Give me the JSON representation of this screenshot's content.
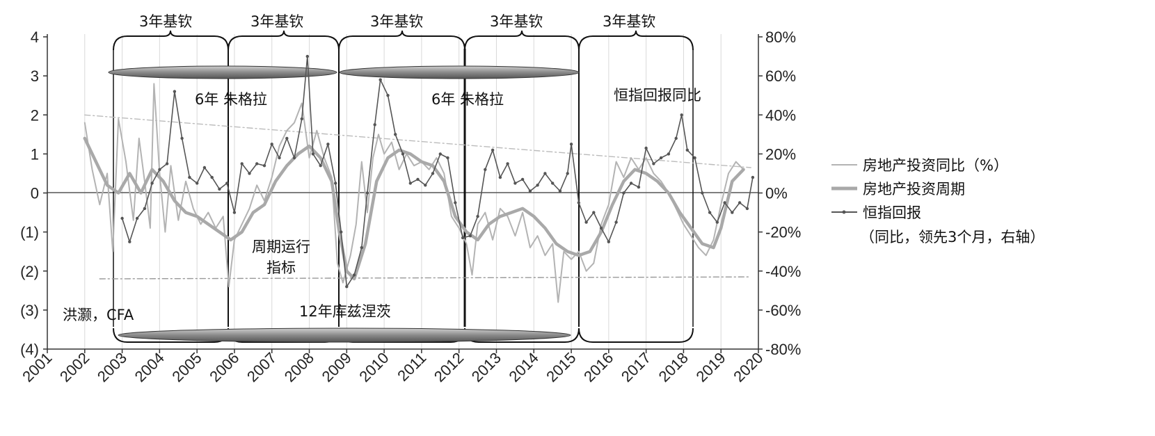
{
  "chart_data": {
    "type": "line",
    "x_ticks": [
      "2001",
      "2002",
      "2003",
      "2004",
      "2005",
      "2006",
      "2007",
      "2008",
      "2009",
      "2010",
      "2011",
      "2012",
      "2013",
      "2014",
      "2015",
      "2016",
      "2017",
      "2018",
      "2019",
      "2020"
    ],
    "left_axis": {
      "ticks": [
        "4",
        "3",
        "2",
        "1",
        "0",
        "(1)",
        "(2)",
        "(3)",
        "(4)"
      ],
      "ylim": [
        -4,
        4
      ]
    },
    "right_axis": {
      "ticks": [
        "80%",
        "60%",
        "40%",
        "20%",
        "0%",
        "-20%",
        "-40%",
        "-60%",
        "-80%"
      ],
      "ylim": [
        -80,
        80
      ],
      "unit": "%"
    },
    "grid": "vertical",
    "legend_position": "right",
    "series": [
      {
        "name": "房地产投资同比（%）",
        "axis": "left",
        "color": "#b3b3b3",
        "style": "thin",
        "points": [
          [
            2002.0,
            1.8
          ],
          [
            2002.2,
            0.6
          ],
          [
            2002.4,
            -0.3
          ],
          [
            2002.6,
            0.5
          ],
          [
            2002.75,
            -1.5
          ],
          [
            2002.9,
            1.9
          ],
          [
            2003.1,
            0.8
          ],
          [
            2003.3,
            -0.7
          ],
          [
            2003.45,
            1.4
          ],
          [
            2003.6,
            0.3
          ],
          [
            2003.75,
            -0.9
          ],
          [
            2003.85,
            2.8
          ],
          [
            2004.0,
            0.5
          ],
          [
            2004.15,
            -1.0
          ],
          [
            2004.3,
            0.7
          ],
          [
            2004.5,
            -0.7
          ],
          [
            2004.7,
            0.3
          ],
          [
            2004.9,
            -0.4
          ],
          [
            2005.1,
            -0.8
          ],
          [
            2005.3,
            -0.5
          ],
          [
            2005.5,
            -0.9
          ],
          [
            2005.7,
            -0.6
          ],
          [
            2005.85,
            -2.4
          ],
          [
            2006.0,
            -1.2
          ],
          [
            2006.2,
            -0.8
          ],
          [
            2006.4,
            -0.4
          ],
          [
            2006.6,
            0.2
          ],
          [
            2006.8,
            -0.2
          ],
          [
            2007.0,
            0.4
          ],
          [
            2007.2,
            1.2
          ],
          [
            2007.4,
            1.6
          ],
          [
            2007.6,
            1.8
          ],
          [
            2007.8,
            2.3
          ],
          [
            2008.0,
            0.9
          ],
          [
            2008.2,
            1.6
          ],
          [
            2008.4,
            0.9
          ],
          [
            2008.6,
            0.4
          ],
          [
            2008.75,
            -1.8
          ],
          [
            2008.9,
            -2.3
          ],
          [
            2009.1,
            -1.6
          ],
          [
            2009.25,
            -0.8
          ],
          [
            2009.4,
            0.8
          ],
          [
            2009.55,
            -0.5
          ],
          [
            2009.7,
            0.9
          ],
          [
            2009.85,
            1.5
          ],
          [
            2010.0,
            1.0
          ],
          [
            2010.2,
            1.3
          ],
          [
            2010.4,
            0.6
          ],
          [
            2010.6,
            1.0
          ],
          [
            2010.8,
            0.7
          ],
          [
            2011.0,
            0.8
          ],
          [
            2011.2,
            0.6
          ],
          [
            2011.4,
            0.9
          ],
          [
            2011.6,
            0.5
          ],
          [
            2011.8,
            -0.6
          ],
          [
            2012.0,
            -0.9
          ],
          [
            2012.2,
            -1.3
          ],
          [
            2012.35,
            -2.1
          ],
          [
            2012.5,
            -0.8
          ],
          [
            2012.7,
            -0.5
          ],
          [
            2012.9,
            -1.2
          ],
          [
            2013.1,
            -0.4
          ],
          [
            2013.3,
            -0.6
          ],
          [
            2013.5,
            -1.1
          ],
          [
            2013.7,
            -0.5
          ],
          [
            2013.9,
            -1.4
          ],
          [
            2014.1,
            -1.1
          ],
          [
            2014.3,
            -1.6
          ],
          [
            2014.5,
            -1.3
          ],
          [
            2014.65,
            -2.8
          ],
          [
            2014.8,
            -1.5
          ],
          [
            2015.0,
            -1.7
          ],
          [
            2015.2,
            -1.5
          ],
          [
            2015.4,
            -2.0
          ],
          [
            2015.6,
            -1.8
          ],
          [
            2015.8,
            -0.8
          ],
          [
            2016.0,
            -0.3
          ],
          [
            2016.2,
            0.8
          ],
          [
            2016.4,
            0.4
          ],
          [
            2016.6,
            0.9
          ],
          [
            2016.8,
            0.6
          ],
          [
            2017.0,
            0.9
          ],
          [
            2017.2,
            0.5
          ],
          [
            2017.4,
            0.3
          ],
          [
            2017.6,
            0.0
          ],
          [
            2017.8,
            -0.4
          ],
          [
            2018.0,
            -0.8
          ],
          [
            2018.2,
            -1.1
          ],
          [
            2018.4,
            -1.4
          ],
          [
            2018.6,
            -1.6
          ],
          [
            2018.8,
            -1.2
          ],
          [
            2019.0,
            -0.3
          ],
          [
            2019.2,
            0.5
          ],
          [
            2019.4,
            0.8
          ],
          [
            2019.6,
            0.6
          ]
        ]
      },
      {
        "name": "房地产投资周期",
        "axis": "left",
        "color": "#a9a9a9",
        "style": "thick",
        "points": [
          [
            2002.0,
            1.4
          ],
          [
            2002.3,
            0.8
          ],
          [
            2002.6,
            0.2
          ],
          [
            2002.9,
            0.0
          ],
          [
            2003.2,
            0.5
          ],
          [
            2003.5,
            0.0
          ],
          [
            2003.8,
            0.6
          ],
          [
            2004.1,
            0.3
          ],
          [
            2004.4,
            -0.2
          ],
          [
            2004.7,
            -0.5
          ],
          [
            2005.0,
            -0.6
          ],
          [
            2005.3,
            -0.8
          ],
          [
            2005.6,
            -1.0
          ],
          [
            2005.9,
            -1.2
          ],
          [
            2006.2,
            -1.0
          ],
          [
            2006.5,
            -0.5
          ],
          [
            2006.8,
            -0.3
          ],
          [
            2007.1,
            0.3
          ],
          [
            2007.4,
            0.7
          ],
          [
            2007.7,
            1.0
          ],
          [
            2008.0,
            1.2
          ],
          [
            2008.3,
            0.9
          ],
          [
            2008.6,
            0.3
          ],
          [
            2008.8,
            -1.0
          ],
          [
            2009.0,
            -2.0
          ],
          [
            2009.2,
            -2.2
          ],
          [
            2009.5,
            -1.3
          ],
          [
            2009.8,
            0.3
          ],
          [
            2010.1,
            0.9
          ],
          [
            2010.4,
            1.1
          ],
          [
            2010.7,
            1.0
          ],
          [
            2011.0,
            0.8
          ],
          [
            2011.3,
            0.7
          ],
          [
            2011.6,
            0.3
          ],
          [
            2011.9,
            -0.6
          ],
          [
            2012.2,
            -1.0
          ],
          [
            2012.5,
            -1.2
          ],
          [
            2012.8,
            -0.8
          ],
          [
            2013.1,
            -0.6
          ],
          [
            2013.4,
            -0.5
          ],
          [
            2013.7,
            -0.4
          ],
          [
            2014.0,
            -0.6
          ],
          [
            2014.3,
            -0.9
          ],
          [
            2014.6,
            -1.3
          ],
          [
            2014.9,
            -1.5
          ],
          [
            2015.2,
            -1.6
          ],
          [
            2015.5,
            -1.5
          ],
          [
            2015.8,
            -1.0
          ],
          [
            2016.1,
            -0.3
          ],
          [
            2016.4,
            0.3
          ],
          [
            2016.7,
            0.6
          ],
          [
            2017.0,
            0.5
          ],
          [
            2017.3,
            0.3
          ],
          [
            2017.6,
            0.0
          ],
          [
            2017.9,
            -0.5
          ],
          [
            2018.2,
            -0.9
          ],
          [
            2018.5,
            -1.3
          ],
          [
            2018.8,
            -1.4
          ],
          [
            2019.0,
            -0.9
          ],
          [
            2019.3,
            0.3
          ],
          [
            2019.6,
            0.6
          ]
        ]
      },
      {
        "name": "恒指回报",
        "axis": "right",
        "color": "#555555",
        "style": "markers",
        "points": [
          [
            2003.0,
            -13
          ],
          [
            2003.2,
            -25
          ],
          [
            2003.4,
            -13
          ],
          [
            2003.6,
            -8
          ],
          [
            2003.8,
            5
          ],
          [
            2004.0,
            12
          ],
          [
            2004.2,
            15
          ],
          [
            2004.4,
            52
          ],
          [
            2004.6,
            28
          ],
          [
            2004.8,
            8
          ],
          [
            2005.0,
            5
          ],
          [
            2005.2,
            13
          ],
          [
            2005.4,
            8
          ],
          [
            2005.6,
            2
          ],
          [
            2005.8,
            5
          ],
          [
            2006.0,
            -10
          ],
          [
            2006.2,
            15
          ],
          [
            2006.4,
            10
          ],
          [
            2006.6,
            15
          ],
          [
            2006.8,
            14
          ],
          [
            2007.0,
            25
          ],
          [
            2007.2,
            18
          ],
          [
            2007.4,
            28
          ],
          [
            2007.6,
            18
          ],
          [
            2007.8,
            38
          ],
          [
            2007.95,
            70
          ],
          [
            2008.1,
            20
          ],
          [
            2008.3,
            14
          ],
          [
            2008.5,
            25
          ],
          [
            2008.7,
            5
          ],
          [
            2008.85,
            -20
          ],
          [
            2009.0,
            -48
          ],
          [
            2009.2,
            -42
          ],
          [
            2009.4,
            -28
          ],
          [
            2009.55,
            0
          ],
          [
            2009.75,
            35
          ],
          [
            2009.9,
            58
          ],
          [
            2010.1,
            50
          ],
          [
            2010.3,
            30
          ],
          [
            2010.5,
            20
          ],
          [
            2010.7,
            5
          ],
          [
            2010.9,
            7
          ],
          [
            2011.1,
            4
          ],
          [
            2011.3,
            10
          ],
          [
            2011.5,
            20
          ],
          [
            2011.7,
            18
          ],
          [
            2011.9,
            -5
          ],
          [
            2012.1,
            -23
          ],
          [
            2012.3,
            -22
          ],
          [
            2012.5,
            -12
          ],
          [
            2012.7,
            12
          ],
          [
            2012.9,
            22
          ],
          [
            2013.1,
            8
          ],
          [
            2013.3,
            15
          ],
          [
            2013.5,
            5
          ],
          [
            2013.7,
            7
          ],
          [
            2013.9,
            1
          ],
          [
            2014.1,
            4
          ],
          [
            2014.3,
            10
          ],
          [
            2014.5,
            5
          ],
          [
            2014.7,
            1
          ],
          [
            2014.9,
            10
          ],
          [
            2015.0,
            25
          ],
          [
            2015.2,
            -5
          ],
          [
            2015.4,
            -15
          ],
          [
            2015.6,
            -10
          ],
          [
            2015.8,
            -18
          ],
          [
            2016.0,
            -25
          ],
          [
            2016.2,
            -15
          ],
          [
            2016.4,
            0
          ],
          [
            2016.6,
            5
          ],
          [
            2016.8,
            3
          ],
          [
            2017.0,
            23
          ],
          [
            2017.2,
            15
          ],
          [
            2017.4,
            18
          ],
          [
            2017.6,
            20
          ],
          [
            2017.8,
            28
          ],
          [
            2017.95,
            40
          ],
          [
            2018.1,
            22
          ],
          [
            2018.3,
            18
          ],
          [
            2018.5,
            0
          ],
          [
            2018.7,
            -10
          ],
          [
            2018.9,
            -15
          ],
          [
            2019.1,
            -5
          ],
          [
            2019.3,
            -10
          ],
          [
            2019.5,
            -5
          ],
          [
            2019.7,
            -8
          ],
          [
            2019.85,
            8
          ]
        ]
      },
      {
        "name": "trend-upper",
        "axis": "left",
        "color": "#bbbbbb",
        "style": "dashdot",
        "points": [
          [
            2002.0,
            2.0
          ],
          [
            2019.8,
            0.65
          ]
        ]
      },
      {
        "name": "trend-lower",
        "axis": "left",
        "color": "#999999",
        "style": "dashdot",
        "points": [
          [
            2002.4,
            -2.2
          ],
          [
            2019.8,
            -2.15
          ]
        ]
      }
    ],
    "annotations": {
      "cycle_3y": "3年基钦",
      "cycle_6y": "6年 朱格拉",
      "cycle_12y": "12年库兹涅茨",
      "hsi_label": "恒指回报同比",
      "indicator_line1": "周期运行",
      "indicator_line2": "指标",
      "source": "洪灏，CFA"
    },
    "legend": {
      "items": [
        "房地产投资同比（%）",
        "房地产投资周期",
        "恒指回报"
      ],
      "note": "（同比，领先3个月，右轴）"
    }
  }
}
